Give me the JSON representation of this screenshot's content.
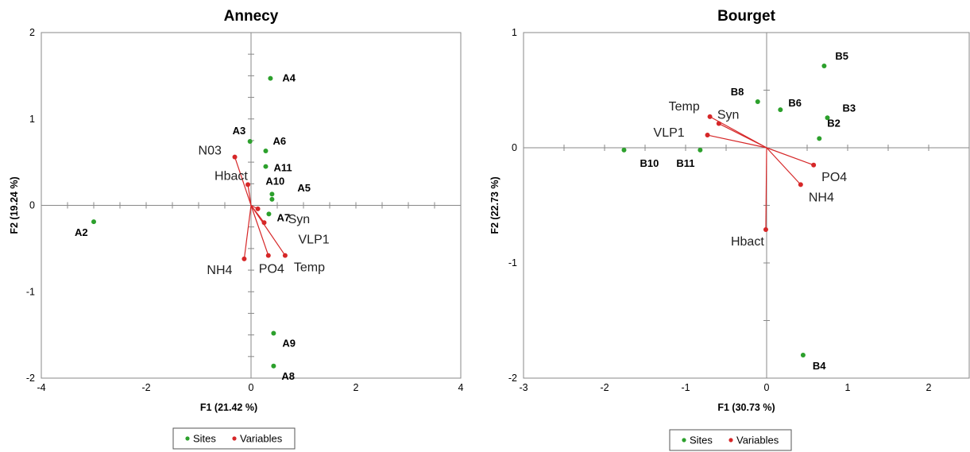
{
  "chart_data": [
    {
      "type": "scatter",
      "title": "Annecy",
      "xlabel": "F1 (21.42 %)",
      "ylabel": "F2 (19.24 %)",
      "xlim": [
        -4,
        4
      ],
      "ylim": [
        -2,
        2
      ],
      "xticks": [
        "-4",
        "-2",
        "0",
        "2",
        "4"
      ],
      "yticks": [
        "2",
        "1",
        "0",
        "-1",
        "-2"
      ],
      "legend": {
        "position": "bottom",
        "entries": [
          "Sites",
          "Variables"
        ]
      },
      "colors": {
        "Sites": "#2ca02c",
        "Variables": "#d62728"
      },
      "sites": [
        {
          "label": "A2",
          "x": -3.0,
          "y": -0.19
        },
        {
          "label": "A3",
          "x": -0.02,
          "y": 0.74
        },
        {
          "label": "A4",
          "x": 0.37,
          "y": 1.47
        },
        {
          "label": "A5",
          "x": 0.4,
          "y": 0.07
        },
        {
          "label": "A6",
          "x": 0.28,
          "y": 0.63
        },
        {
          "label": "A7",
          "x": 0.34,
          "y": -0.1
        },
        {
          "label": "A8",
          "x": 0.43,
          "y": -1.86
        },
        {
          "label": "A9",
          "x": 0.43,
          "y": -1.48
        },
        {
          "label": "A10",
          "x": 0.4,
          "y": 0.13
        },
        {
          "label": "A11",
          "x": 0.28,
          "y": 0.45
        }
      ],
      "variables": [
        {
          "label": "N03",
          "x": -0.31,
          "y": 0.56
        },
        {
          "label": "Hbact",
          "x": -0.06,
          "y": 0.24
        },
        {
          "label": "Syn",
          "x": 0.13,
          "y": -0.04
        },
        {
          "label": "VLP1",
          "x": 0.25,
          "y": -0.2
        },
        {
          "label": "Temp",
          "x": 0.65,
          "y": -0.58
        },
        {
          "label": "PO4",
          "x": 0.33,
          "y": -0.58
        },
        {
          "label": "NH4",
          "x": -0.13,
          "y": -0.62
        }
      ]
    },
    {
      "type": "scatter",
      "title": "Bourget",
      "xlabel": "F1 (30.73 %)",
      "ylabel": "F2 (22.73 %)",
      "xlim": [
        -3,
        2.5
      ],
      "ylim": [
        -2,
        1
      ],
      "xticks": [
        "-3",
        "-2",
        "-1",
        "0",
        "1",
        "2"
      ],
      "yticks": [
        "1",
        "0",
        "-1",
        "-2"
      ],
      "legend": {
        "position": "bottom",
        "entries": [
          "Sites",
          "Variables"
        ]
      },
      "colors": {
        "Sites": "#2ca02c",
        "Variables": "#d62728"
      },
      "sites": [
        {
          "label": "B2",
          "x": 0.65,
          "y": 0.08
        },
        {
          "label": "B3",
          "x": 0.75,
          "y": 0.26
        },
        {
          "label": "B4",
          "x": 0.45,
          "y": -1.8
        },
        {
          "label": "B5",
          "x": 0.71,
          "y": 0.71
        },
        {
          "label": "B6",
          "x": 0.17,
          "y": 0.33
        },
        {
          "label": "B8",
          "x": -0.11,
          "y": 0.4
        },
        {
          "label": "B10",
          "x": -1.76,
          "y": -0.02
        },
        {
          "label": "B11",
          "x": -0.82,
          "y": -0.02
        }
      ],
      "variables": [
        {
          "label": "Temp",
          "x": -0.7,
          "y": 0.27
        },
        {
          "label": "Syn",
          "x": -0.59,
          "y": 0.21
        },
        {
          "label": "VLP1",
          "x": -0.73,
          "y": 0.11
        },
        {
          "label": "PO4",
          "x": 0.58,
          "y": -0.15
        },
        {
          "label": "NH4",
          "x": 0.42,
          "y": -0.32
        },
        {
          "label": "Hbact",
          "x": -0.01,
          "y": -0.71
        }
      ]
    }
  ]
}
